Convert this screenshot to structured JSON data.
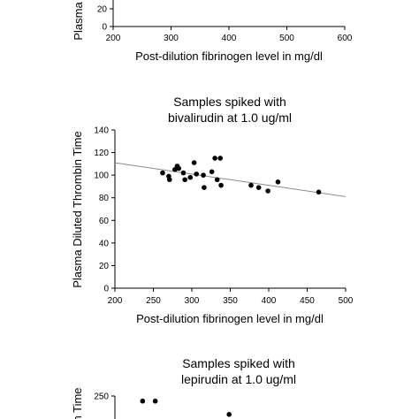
{
  "chart_data": [
    {
      "type": "scatter",
      "title": [],
      "xlabel": "Post-dilution fibrinogen level in mg/dl",
      "ylabel": "Plasma",
      "xlim": [
        200,
        600
      ],
      "x_ticks": [
        200,
        300,
        400,
        500,
        600
      ],
      "y_ticks_visible": [
        0,
        20
      ],
      "points": []
    },
    {
      "type": "scatter",
      "title": [
        "Samples spiked with",
        "bivalirudin at 1.0 ug/ml"
      ],
      "xlabel": "Post-dilution fibrinogen level in mg/dl",
      "ylabel": "Plasma Diluted Thrombin Time",
      "xlim": [
        200,
        500
      ],
      "ylim": [
        0,
        140
      ],
      "x_ticks": [
        200,
        250,
        300,
        350,
        400,
        450,
        500
      ],
      "y_ticks": [
        0,
        20,
        40,
        60,
        80,
        100,
        120,
        140
      ],
      "trendline": [
        [
          200,
          111
        ],
        [
          500,
          81
        ]
      ],
      "points": [
        [
          262,
          102
        ],
        [
          270,
          99
        ],
        [
          271,
          96
        ],
        [
          278,
          105
        ],
        [
          281,
          108
        ],
        [
          283,
          106
        ],
        [
          289,
          102
        ],
        [
          291,
          96
        ],
        [
          298,
          98
        ],
        [
          303,
          111
        ],
        [
          306,
          101
        ],
        [
          315,
          100
        ],
        [
          316,
          89
        ],
        [
          326,
          103
        ],
        [
          330,
          115
        ],
        [
          333,
          96
        ],
        [
          337,
          115
        ],
        [
          338,
          91
        ],
        [
          377,
          91
        ],
        [
          387,
          89
        ],
        [
          399,
          86
        ],
        [
          412,
          94
        ],
        [
          465,
          85
        ]
      ]
    },
    {
      "type": "scatter",
      "title": [
        "Samples spiked with",
        "lepirudin at 1.0 ug/ml"
      ],
      "ylabel": "n Time",
      "y_ticks_visible": [
        250
      ],
      "points": [
        [
          0.12,
          0.78
        ],
        [
          0.175,
          0.78
        ],
        [
          0.495,
          0.2
        ]
      ]
    }
  ]
}
